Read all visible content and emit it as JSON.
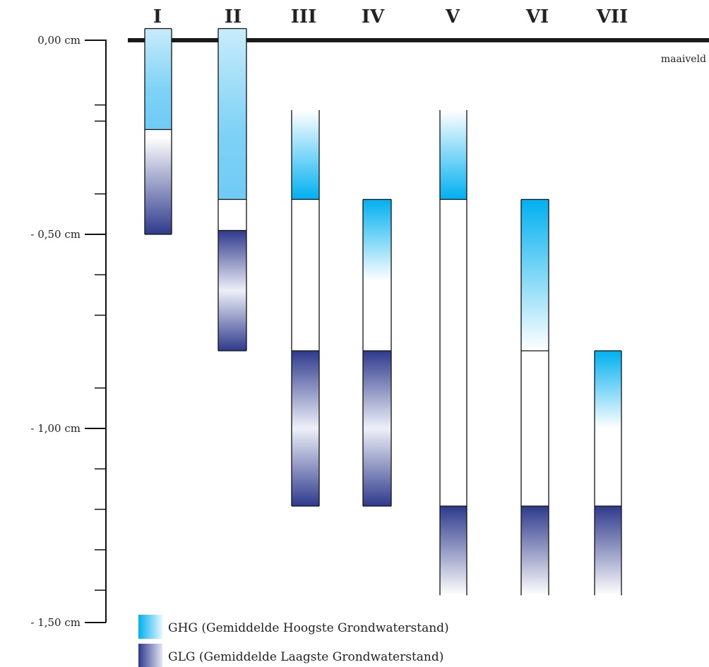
{
  "diagram": {
    "surface_label": "maaiveld",
    "y_ticks": [
      {
        "label": "0,00 cm",
        "value": 0
      },
      {
        "label": "- 0,50 cm",
        "value": 0.5
      },
      {
        "label": "- 1,00 cm",
        "value": 1.0
      },
      {
        "label": "- 1,50 cm",
        "value": 1.5
      }
    ],
    "minor_ticks": [
      0.1667,
      0.2083,
      0.3958,
      0.6042,
      0.7083,
      0.8958,
      1.1042,
      1.2083,
      1.3125,
      1.4167
    ],
    "colors": {
      "ghg_strong": "#00b0f0",
      "glg_strong": "#2e3a8c",
      "line": "#111111"
    },
    "columns": [
      {
        "label": "I",
        "ghg": [
          -0.03,
          0.23
        ],
        "glg": [
          0.25,
          0.5
        ],
        "tube": [
          -0.03,
          0.5
        ]
      },
      {
        "label": "II",
        "ghg": [
          -0.03,
          0.41
        ],
        "glg": [
          0.49,
          0.8
        ],
        "tube": [
          -0.03,
          0.8
        ]
      },
      {
        "label": "III",
        "ghg": [
          0.18,
          0.41
        ],
        "glg": [
          0.8,
          1.2
        ],
        "tube": [
          0.18,
          1.2
        ]
      },
      {
        "label": "IV",
        "ghg": [
          0.41,
          0.62
        ],
        "glg": [
          0.8,
          1.2
        ],
        "tube": [
          0.41,
          1.2
        ]
      },
      {
        "label": "V",
        "ghg": [
          0.18,
          0.41
        ],
        "glg": [
          1.2,
          1.43
        ],
        "tube": [
          0.18,
          1.43
        ]
      },
      {
        "label": "VI",
        "ghg": [
          0.41,
          0.8
        ],
        "glg": [
          1.2,
          1.43
        ],
        "tube": [
          0.41,
          1.43
        ]
      },
      {
        "label": "VII",
        "ghg": [
          0.8,
          1.0
        ],
        "glg": [
          1.2,
          1.43
        ],
        "tube": [
          0.8,
          1.43
        ]
      }
    ]
  },
  "legend": {
    "ghg": {
      "abbr": "GHG",
      "desc": "(Gemiddelde Hoogste Grondwaterstand)"
    },
    "glg": {
      "abbr": "GLG",
      "desc": "(Gemiddelde Laagste Grondwaterstand)"
    }
  }
}
